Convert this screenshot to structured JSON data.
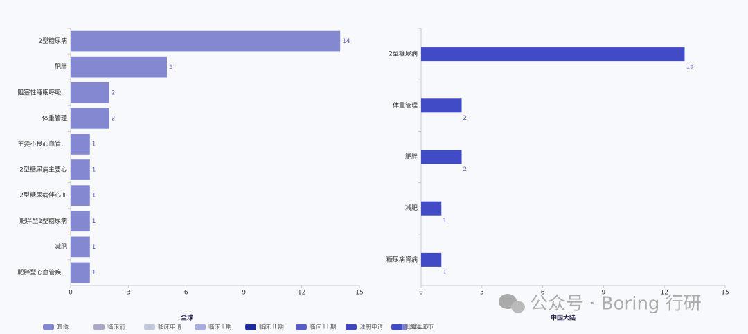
{
  "chart_data": [
    {
      "type": "bar",
      "orientation": "horizontal",
      "title": "全球",
      "categories": [
        "2型糖尿病",
        "肥胖",
        "阻塞性睡眠呼吸...",
        "体重管理",
        "主要不良心血管...",
        "2型糖尿病主要心",
        "2型糖尿病伴心血",
        "肥胖型2型糖尿病",
        "减肥",
        "肥胖型心血管疾..."
      ],
      "values": [
        14,
        5,
        2,
        2,
        1,
        1,
        1,
        1,
        1,
        1
      ],
      "color": "#8388d0",
      "xlim": [
        0,
        15
      ],
      "xticks": [
        0,
        3,
        6,
        9,
        12,
        15
      ],
      "legend": [
        {
          "name": "其他",
          "color": "#8186d0"
        },
        {
          "name": "临床前",
          "color": "#aaaac8"
        },
        {
          "name": "临床申请",
          "color": "#c3c9dc"
        },
        {
          "name": "临床 I 期",
          "color": "#a9acdf"
        },
        {
          "name": "临床 II 期",
          "color": "#1b2a9c"
        },
        {
          "name": "临床 III 期",
          "color": "#5a5fc8"
        },
        {
          "name": "注册申请",
          "color": "#3f46c0"
        },
        {
          "name": "批准上市",
          "color": "#8185d0"
        }
      ]
    },
    {
      "type": "bar",
      "orientation": "horizontal",
      "title": "中国大陆",
      "categories": [
        "2型糖尿病",
        "体重管理",
        "肥胖",
        "减肥",
        "糖尿病肾病"
      ],
      "values": [
        13,
        2,
        2,
        1,
        1
      ],
      "color": "#414bc6",
      "xlim": [
        0,
        15
      ],
      "xticks": [
        0,
        3,
        6,
        9,
        12,
        15
      ],
      "legend": [
        {
          "name": "批准上市",
          "color": "#414bc6"
        }
      ]
    }
  ],
  "watermark": "公众号 · Boring 行研"
}
